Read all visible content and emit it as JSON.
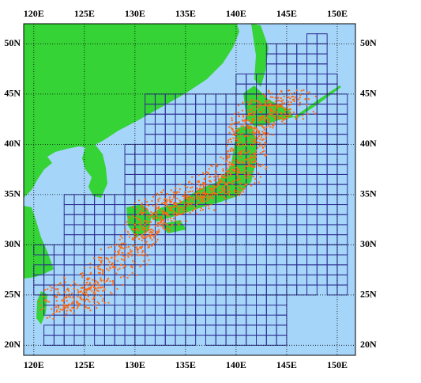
{
  "map": {
    "lon_ticks": [
      {
        "value": 120,
        "label": "120E"
      },
      {
        "value": 125,
        "label": "125E"
      },
      {
        "value": 130,
        "label": "130E"
      },
      {
        "value": 135,
        "label": "135E"
      },
      {
        "value": 140,
        "label": "140E"
      },
      {
        "value": 145,
        "label": "145E"
      },
      {
        "value": 150,
        "label": "150E"
      }
    ],
    "lat_ticks": [
      {
        "value": 20,
        "label": "20N"
      },
      {
        "value": 25,
        "label": "25N"
      },
      {
        "value": 30,
        "label": "30N"
      },
      {
        "value": 35,
        "label": "35N"
      },
      {
        "value": 40,
        "label": "40N"
      },
      {
        "value": 45,
        "label": "45N"
      },
      {
        "value": 50,
        "label": "50N"
      }
    ],
    "lon_range": [
      119,
      151.8
    ],
    "lat_range": [
      19,
      52
    ]
  }
}
